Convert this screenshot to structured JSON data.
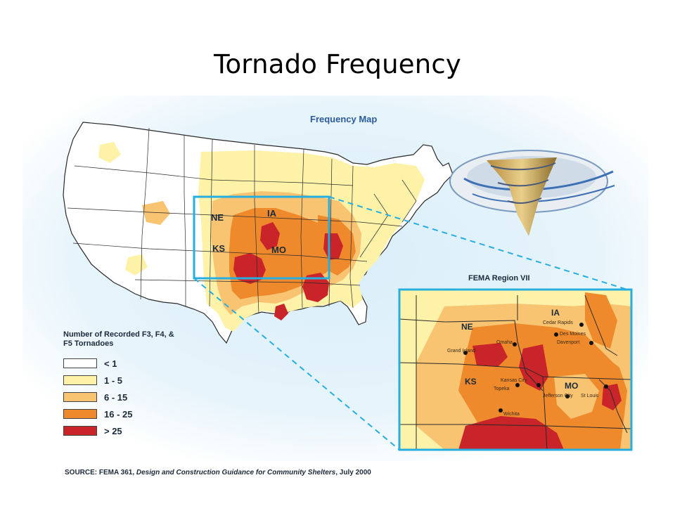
{
  "slide": {
    "title": "Tornado Frequency"
  },
  "map": {
    "title": "Frequency Map",
    "state_labels": {
      "ne": "NE",
      "ia": "IA",
      "ks": "KS",
      "mo": "MO"
    }
  },
  "inset": {
    "title": "FEMA Region VII",
    "state_labels": {
      "ne": "NE",
      "ia": "IA",
      "ks": "KS",
      "mo": "MO"
    },
    "cities": {
      "cedar_rapids": "Cedar Rapids",
      "des_moines": "Des Moines",
      "davenport": "Davenport",
      "omaha": "Omaha",
      "grand_island": "Grand Island",
      "kansas_city": "Kansas City",
      "topeka": "Topeka",
      "jefferson_city": "Jefferson City",
      "st_louis": "St Louis",
      "wichita": "Wichita"
    }
  },
  "legend": {
    "title": "Number of Recorded F3, F4, & F5 Tornadoes",
    "items": [
      {
        "label": "< 1",
        "color": "#ffffff"
      },
      {
        "label": "1 - 5",
        "color": "#fdf2a8"
      },
      {
        "label": "6 - 15",
        "color": "#f8c472"
      },
      {
        "label": "16 - 25",
        "color": "#ee8a2c"
      },
      {
        "label": "> 25",
        "color": "#c8242a"
      }
    ]
  },
  "source": {
    "prefix": "SOURCE: FEMA 361, ",
    "italic": "Design and Construction Guidance for Community Shelters",
    "suffix": ", July 2000"
  },
  "colors": {
    "highlight_box": "#27aee0",
    "ocean_glow": "#cfe8f6"
  }
}
